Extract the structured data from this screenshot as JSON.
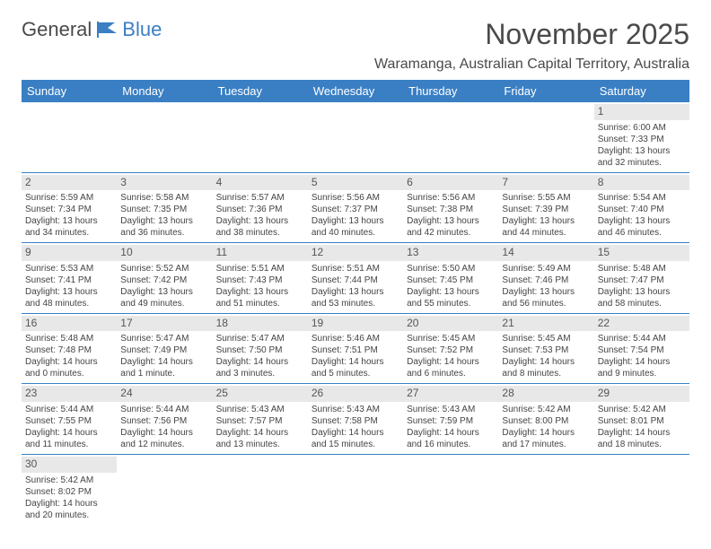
{
  "logo": {
    "text_a": "General",
    "text_b": "Blue"
  },
  "title": "November 2025",
  "location": "Waramanga, Australian Capital Territory, Australia",
  "colors": {
    "header_bg": "#3a7fc4",
    "header_text": "#ffffff",
    "daynum_bg": "#e8e8e8",
    "border": "#3a7fc4",
    "page_bg": "#ffffff",
    "text": "#444444"
  },
  "weekdays": [
    "Sunday",
    "Monday",
    "Tuesday",
    "Wednesday",
    "Thursday",
    "Friday",
    "Saturday"
  ],
  "weeks": [
    [
      {
        "n": "",
        "sr": "",
        "ss": "",
        "dl": ""
      },
      {
        "n": "",
        "sr": "",
        "ss": "",
        "dl": ""
      },
      {
        "n": "",
        "sr": "",
        "ss": "",
        "dl": ""
      },
      {
        "n": "",
        "sr": "",
        "ss": "",
        "dl": ""
      },
      {
        "n": "",
        "sr": "",
        "ss": "",
        "dl": ""
      },
      {
        "n": "",
        "sr": "",
        "ss": "",
        "dl": ""
      },
      {
        "n": "1",
        "sr": "Sunrise: 6:00 AM",
        "ss": "Sunset: 7:33 PM",
        "dl": "Daylight: 13 hours and 32 minutes."
      }
    ],
    [
      {
        "n": "2",
        "sr": "Sunrise: 5:59 AM",
        "ss": "Sunset: 7:34 PM",
        "dl": "Daylight: 13 hours and 34 minutes."
      },
      {
        "n": "3",
        "sr": "Sunrise: 5:58 AM",
        "ss": "Sunset: 7:35 PM",
        "dl": "Daylight: 13 hours and 36 minutes."
      },
      {
        "n": "4",
        "sr": "Sunrise: 5:57 AM",
        "ss": "Sunset: 7:36 PM",
        "dl": "Daylight: 13 hours and 38 minutes."
      },
      {
        "n": "5",
        "sr": "Sunrise: 5:56 AM",
        "ss": "Sunset: 7:37 PM",
        "dl": "Daylight: 13 hours and 40 minutes."
      },
      {
        "n": "6",
        "sr": "Sunrise: 5:56 AM",
        "ss": "Sunset: 7:38 PM",
        "dl": "Daylight: 13 hours and 42 minutes."
      },
      {
        "n": "7",
        "sr": "Sunrise: 5:55 AM",
        "ss": "Sunset: 7:39 PM",
        "dl": "Daylight: 13 hours and 44 minutes."
      },
      {
        "n": "8",
        "sr": "Sunrise: 5:54 AM",
        "ss": "Sunset: 7:40 PM",
        "dl": "Daylight: 13 hours and 46 minutes."
      }
    ],
    [
      {
        "n": "9",
        "sr": "Sunrise: 5:53 AM",
        "ss": "Sunset: 7:41 PM",
        "dl": "Daylight: 13 hours and 48 minutes."
      },
      {
        "n": "10",
        "sr": "Sunrise: 5:52 AM",
        "ss": "Sunset: 7:42 PM",
        "dl": "Daylight: 13 hours and 49 minutes."
      },
      {
        "n": "11",
        "sr": "Sunrise: 5:51 AM",
        "ss": "Sunset: 7:43 PM",
        "dl": "Daylight: 13 hours and 51 minutes."
      },
      {
        "n": "12",
        "sr": "Sunrise: 5:51 AM",
        "ss": "Sunset: 7:44 PM",
        "dl": "Daylight: 13 hours and 53 minutes."
      },
      {
        "n": "13",
        "sr": "Sunrise: 5:50 AM",
        "ss": "Sunset: 7:45 PM",
        "dl": "Daylight: 13 hours and 55 minutes."
      },
      {
        "n": "14",
        "sr": "Sunrise: 5:49 AM",
        "ss": "Sunset: 7:46 PM",
        "dl": "Daylight: 13 hours and 56 minutes."
      },
      {
        "n": "15",
        "sr": "Sunrise: 5:48 AM",
        "ss": "Sunset: 7:47 PM",
        "dl": "Daylight: 13 hours and 58 minutes."
      }
    ],
    [
      {
        "n": "16",
        "sr": "Sunrise: 5:48 AM",
        "ss": "Sunset: 7:48 PM",
        "dl": "Daylight: 14 hours and 0 minutes."
      },
      {
        "n": "17",
        "sr": "Sunrise: 5:47 AM",
        "ss": "Sunset: 7:49 PM",
        "dl": "Daylight: 14 hours and 1 minute."
      },
      {
        "n": "18",
        "sr": "Sunrise: 5:47 AM",
        "ss": "Sunset: 7:50 PM",
        "dl": "Daylight: 14 hours and 3 minutes."
      },
      {
        "n": "19",
        "sr": "Sunrise: 5:46 AM",
        "ss": "Sunset: 7:51 PM",
        "dl": "Daylight: 14 hours and 5 minutes."
      },
      {
        "n": "20",
        "sr": "Sunrise: 5:45 AM",
        "ss": "Sunset: 7:52 PM",
        "dl": "Daylight: 14 hours and 6 minutes."
      },
      {
        "n": "21",
        "sr": "Sunrise: 5:45 AM",
        "ss": "Sunset: 7:53 PM",
        "dl": "Daylight: 14 hours and 8 minutes."
      },
      {
        "n": "22",
        "sr": "Sunrise: 5:44 AM",
        "ss": "Sunset: 7:54 PM",
        "dl": "Daylight: 14 hours and 9 minutes."
      }
    ],
    [
      {
        "n": "23",
        "sr": "Sunrise: 5:44 AM",
        "ss": "Sunset: 7:55 PM",
        "dl": "Daylight: 14 hours and 11 minutes."
      },
      {
        "n": "24",
        "sr": "Sunrise: 5:44 AM",
        "ss": "Sunset: 7:56 PM",
        "dl": "Daylight: 14 hours and 12 minutes."
      },
      {
        "n": "25",
        "sr": "Sunrise: 5:43 AM",
        "ss": "Sunset: 7:57 PM",
        "dl": "Daylight: 14 hours and 13 minutes."
      },
      {
        "n": "26",
        "sr": "Sunrise: 5:43 AM",
        "ss": "Sunset: 7:58 PM",
        "dl": "Daylight: 14 hours and 15 minutes."
      },
      {
        "n": "27",
        "sr": "Sunrise: 5:43 AM",
        "ss": "Sunset: 7:59 PM",
        "dl": "Daylight: 14 hours and 16 minutes."
      },
      {
        "n": "28",
        "sr": "Sunrise: 5:42 AM",
        "ss": "Sunset: 8:00 PM",
        "dl": "Daylight: 14 hours and 17 minutes."
      },
      {
        "n": "29",
        "sr": "Sunrise: 5:42 AM",
        "ss": "Sunset: 8:01 PM",
        "dl": "Daylight: 14 hours and 18 minutes."
      }
    ],
    [
      {
        "n": "30",
        "sr": "Sunrise: 5:42 AM",
        "ss": "Sunset: 8:02 PM",
        "dl": "Daylight: 14 hours and 20 minutes."
      },
      {
        "n": "",
        "sr": "",
        "ss": "",
        "dl": ""
      },
      {
        "n": "",
        "sr": "",
        "ss": "",
        "dl": ""
      },
      {
        "n": "",
        "sr": "",
        "ss": "",
        "dl": ""
      },
      {
        "n": "",
        "sr": "",
        "ss": "",
        "dl": ""
      },
      {
        "n": "",
        "sr": "",
        "ss": "",
        "dl": ""
      },
      {
        "n": "",
        "sr": "",
        "ss": "",
        "dl": ""
      }
    ]
  ]
}
